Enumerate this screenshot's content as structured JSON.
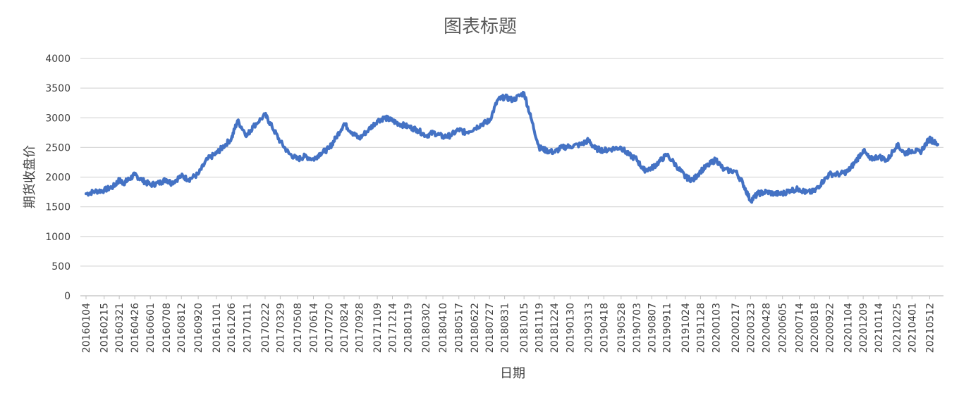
{
  "chart_data": {
    "type": "line",
    "title": "图表标题",
    "xlabel": "日期",
    "ylabel": "期货收盘价",
    "ylim": [
      0,
      4000
    ],
    "yticks": [
      0,
      500,
      1000,
      1500,
      2000,
      2500,
      3000,
      3500,
      4000
    ],
    "grid": true,
    "legend": "none",
    "colors": {
      "line": "#4472C4",
      "grid": "#D9D9D9",
      "axis": "#BFBFBF",
      "text": "#404040",
      "title": "#595959"
    },
    "x_tick_labels": [
      "20160104",
      "20160215",
      "20160321",
      "20160426",
      "20160601",
      "20160708",
      "20160812",
      "20160920",
      "20161101",
      "20161206",
      "20170111",
      "20170222",
      "20170329",
      "20170508",
      "20170614",
      "20170720",
      "20170824",
      "20170928",
      "20171109",
      "20171214",
      "20180119",
      "20180302",
      "20180410",
      "20180517",
      "20180622",
      "20180727",
      "20180831",
      "20181015",
      "20181119",
      "20181224",
      "20190130",
      "20190313",
      "20190418",
      "20190528",
      "20190703",
      "20190807",
      "20190911",
      "20191024",
      "20191128",
      "20200103",
      "20200217",
      "20200323",
      "20200428",
      "20200605",
      "20200714",
      "20200818",
      "20200922",
      "20201104",
      "20201209",
      "20210114",
      "20210225",
      "20210401",
      "20210512"
    ],
    "series": [
      {
        "x": [
          "20160104",
          "20160125",
          "20160215",
          "20160307",
          "20160321",
          "20160331",
          "20160412",
          "20160426",
          "20160513",
          "20160601",
          "20160621",
          "20160708",
          "20160720",
          "20160812",
          "20160829",
          "20160920",
          "20161011",
          "20161101",
          "20161115",
          "20161206",
          "20161220",
          "20170111",
          "20170125",
          "20170222",
          "20170310",
          "20170329",
          "20170418",
          "20170508",
          "20170525",
          "20170614",
          "20170630",
          "20170720",
          "20170804",
          "20170824",
          "20170912",
          "20170928",
          "20171020",
          "20171109",
          "20171127",
          "20171214",
          "20171229",
          "20180119",
          "20180209",
          "20180302",
          "20180320",
          "20180410",
          "20180427",
          "20180517",
          "20180601",
          "20180622",
          "20180711",
          "20180727",
          "20180815",
          "20180831",
          "20180920",
          "20181015",
          "20181031",
          "20181119",
          "20181205",
          "20181224",
          "20190111",
          "20190130",
          "20190225",
          "20190313",
          "20190329",
          "20190418",
          "20190508",
          "20190528",
          "20190614",
          "20190703",
          "20190719",
          "20190807",
          "20190823",
          "20190911",
          "20191008",
          "20191024",
          "20191111",
          "20191128",
          "20191216",
          "20200103",
          "20200121",
          "20200217",
          "20200305",
          "20200323",
          "20200409",
          "20200428",
          "20200518",
          "20200605",
          "20200623",
          "20200714",
          "20200730",
          "20200818",
          "20200903",
          "20200922",
          "20201016",
          "20201104",
          "20201120",
          "20201209",
          "20201225",
          "20210114",
          "20210203",
          "20210225",
          "20210315",
          "20210401",
          "20210420",
          "20210512",
          "20210520",
          "20210531"
        ],
        "values": [
          1720,
          1760,
          1780,
          1840,
          1950,
          1900,
          1960,
          2040,
          1950,
          1870,
          1900,
          1960,
          1900,
          2020,
          1960,
          2050,
          2300,
          2400,
          2500,
          2650,
          2950,
          2700,
          2850,
          3050,
          2850,
          2600,
          2400,
          2300,
          2350,
          2300,
          2400,
          2480,
          2650,
          2900,
          2750,
          2650,
          2800,
          2950,
          3000,
          2950,
          2900,
          2850,
          2800,
          2700,
          2750,
          2680,
          2700,
          2800,
          2750,
          2820,
          2900,
          2950,
          3300,
          3350,
          3300,
          3420,
          3000,
          2500,
          2450,
          2420,
          2500,
          2520,
          2550,
          2620,
          2480,
          2450,
          2480,
          2500,
          2380,
          2300,
          2120,
          2150,
          2250,
          2380,
          2150,
          2000,
          1950,
          2100,
          2200,
          2300,
          2120,
          2100,
          1900,
          1600,
          1720,
          1750,
          1720,
          1720,
          1780,
          1800,
          1740,
          1760,
          1900,
          2050,
          2050,
          2100,
          2250,
          2450,
          2300,
          2350,
          2280,
          2550,
          2400,
          2450,
          2420,
          2650,
          2600,
          2550
        ]
      }
    ]
  }
}
